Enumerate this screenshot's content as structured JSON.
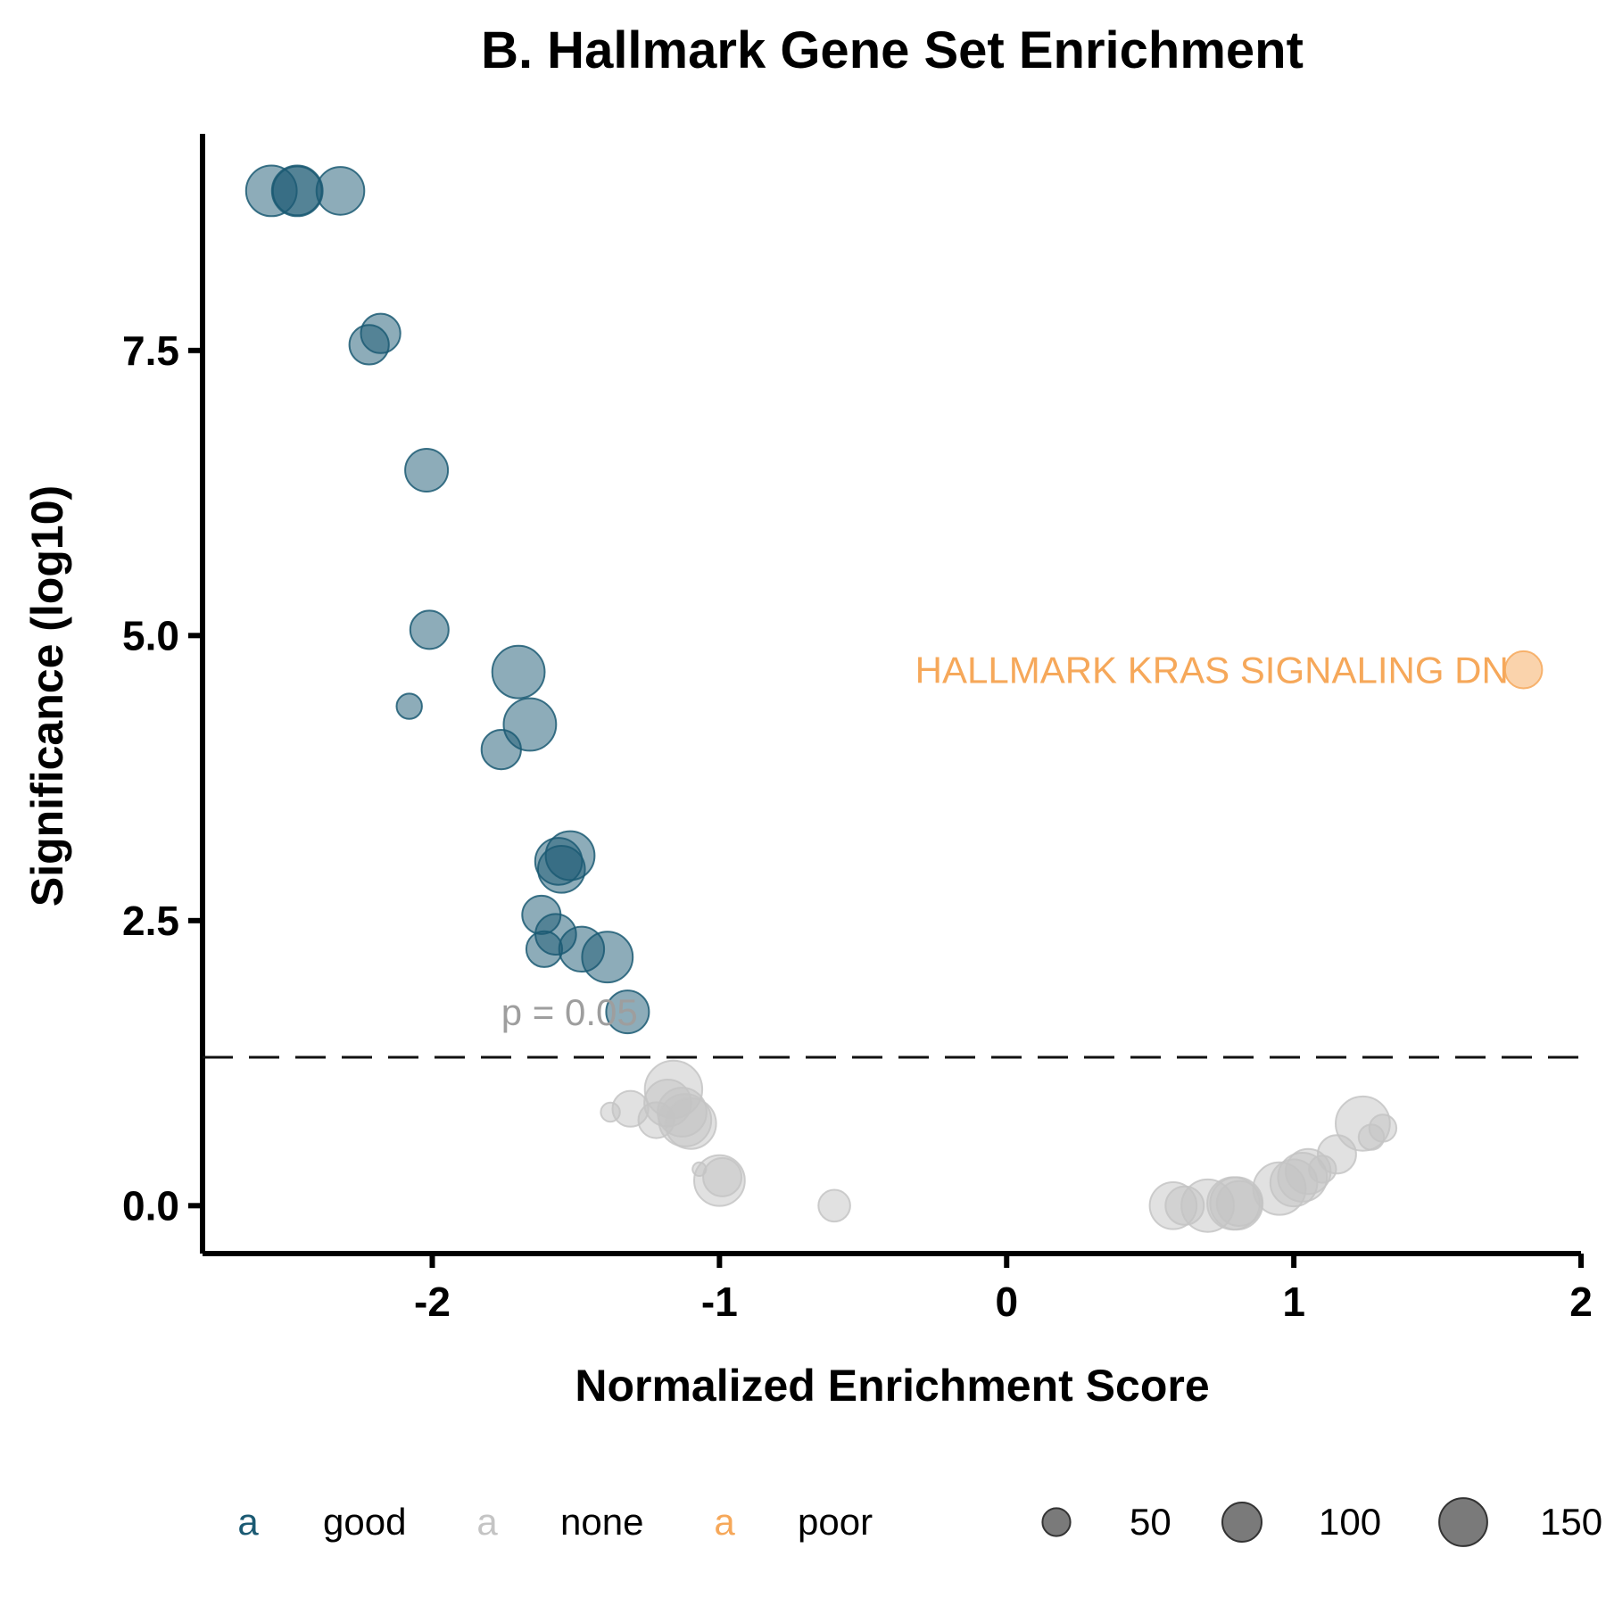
{
  "chart_data": {
    "type": "scatter",
    "title": "B. Hallmark Gene Set Enrichment",
    "xlabel": "Normalized Enrichment Score",
    "ylabel": "Significance (log10)",
    "xlim": [
      -2.8,
      2.0
    ],
    "ylim": [
      -0.42,
      9.4
    ],
    "xticks": [
      -2,
      -1,
      0,
      1,
      2
    ],
    "xtick_labels": [
      "-2",
      "-1",
      "0",
      "1",
      "2"
    ],
    "yticks": [
      0,
      2.5,
      5.0,
      7.5
    ],
    "ytick_labels": [
      "0.0",
      "2.5",
      "5.0",
      "7.5"
    ],
    "grid": false,
    "threshold": {
      "y": 1.301,
      "label": "p = 0.05"
    },
    "colors": {
      "good": "#1b5a73",
      "none": "#c4c4c4",
      "poor": "#f6a85a"
    },
    "point_opacity": 0.5,
    "size_legend": {
      "values": [
        50,
        100,
        150
      ],
      "labels": [
        "50",
        "100",
        "150"
      ]
    },
    "color_legend": {
      "key_glyph": "a",
      "entries": [
        {
          "group": "good",
          "label": "good"
        },
        {
          "group": "none",
          "label": "none"
        },
        {
          "group": "poor",
          "label": "poor"
        }
      ]
    },
    "legend_position": "bottom",
    "annotation": {
      "text": "HALLMARK KRAS SIGNALING DN",
      "group": "poor"
    },
    "points": [
      {
        "x": -2.56,
        "y": 8.9,
        "size": 140,
        "group": "good"
      },
      {
        "x": -2.47,
        "y": 8.9,
        "size": 140,
        "group": "good"
      },
      {
        "x": -2.47,
        "y": 8.9,
        "size": 130,
        "group": "good"
      },
      {
        "x": -2.32,
        "y": 8.9,
        "size": 125,
        "group": "good"
      },
      {
        "x": -2.18,
        "y": 7.65,
        "size": 85,
        "group": "good"
      },
      {
        "x": -2.22,
        "y": 7.55,
        "size": 85,
        "group": "good"
      },
      {
        "x": -2.02,
        "y": 6.45,
        "size": 100,
        "group": "good"
      },
      {
        "x": -2.01,
        "y": 5.05,
        "size": 80,
        "group": "good"
      },
      {
        "x": -2.08,
        "y": 4.38,
        "size": 35,
        "group": "good"
      },
      {
        "x": -1.7,
        "y": 4.68,
        "size": 150,
        "group": "good"
      },
      {
        "x": -1.66,
        "y": 4.22,
        "size": 150,
        "group": "good"
      },
      {
        "x": -1.76,
        "y": 4.0,
        "size": 85,
        "group": "good"
      },
      {
        "x": -1.56,
        "y": 3.02,
        "size": 120,
        "group": "good"
      },
      {
        "x": -1.55,
        "y": 2.95,
        "size": 120,
        "group": "good"
      },
      {
        "x": -1.52,
        "y": 3.07,
        "size": 130,
        "group": "good"
      },
      {
        "x": -1.62,
        "y": 2.55,
        "size": 80,
        "group": "good"
      },
      {
        "x": -1.57,
        "y": 2.38,
        "size": 90,
        "group": "good"
      },
      {
        "x": -1.61,
        "y": 2.25,
        "size": 70,
        "group": "good"
      },
      {
        "x": -1.48,
        "y": 2.25,
        "size": 110,
        "group": "good"
      },
      {
        "x": -1.39,
        "y": 2.18,
        "size": 140,
        "group": "good"
      },
      {
        "x": -1.32,
        "y": 1.7,
        "size": 100,
        "group": "good"
      },
      {
        "x": 1.8,
        "y": 4.7,
        "size": 75,
        "group": "poor"
      },
      {
        "x": -1.38,
        "y": 0.82,
        "size": 20,
        "group": "none"
      },
      {
        "x": -1.31,
        "y": 0.85,
        "size": 70,
        "group": "none"
      },
      {
        "x": -1.22,
        "y": 0.75,
        "size": 70,
        "group": "none"
      },
      {
        "x": -1.18,
        "y": 0.9,
        "size": 120,
        "group": "none"
      },
      {
        "x": -1.16,
        "y": 1.02,
        "size": 180,
        "group": "none"
      },
      {
        "x": -1.13,
        "y": 0.82,
        "size": 130,
        "group": "none"
      },
      {
        "x": -1.12,
        "y": 0.75,
        "size": 150,
        "group": "none"
      },
      {
        "x": -1.1,
        "y": 0.72,
        "size": 140,
        "group": "none"
      },
      {
        "x": -1.07,
        "y": 0.32,
        "size": 10,
        "group": "none"
      },
      {
        "x": -1.0,
        "y": 0.22,
        "size": 140,
        "group": "none"
      },
      {
        "x": -0.99,
        "y": 0.25,
        "size": 80,
        "group": "none"
      },
      {
        "x": -0.6,
        "y": 0.0,
        "size": 55,
        "group": "none"
      },
      {
        "x": 0.58,
        "y": 0.0,
        "size": 120,
        "group": "none"
      },
      {
        "x": 0.62,
        "y": 0.0,
        "size": 80,
        "group": "none"
      },
      {
        "x": 0.7,
        "y": 0.0,
        "size": 150,
        "group": "none"
      },
      {
        "x": 0.79,
        "y": 0.02,
        "size": 150,
        "group": "none"
      },
      {
        "x": 0.8,
        "y": 0.02,
        "size": 150,
        "group": "none"
      },
      {
        "x": 0.81,
        "y": 0.02,
        "size": 110,
        "group": "none"
      },
      {
        "x": 0.95,
        "y": 0.15,
        "size": 150,
        "group": "none"
      },
      {
        "x": 1.0,
        "y": 0.2,
        "size": 120,
        "group": "none"
      },
      {
        "x": 1.03,
        "y": 0.25,
        "size": 130,
        "group": "none"
      },
      {
        "x": 1.05,
        "y": 0.3,
        "size": 110,
        "group": "none"
      },
      {
        "x": 1.1,
        "y": 0.32,
        "size": 40,
        "group": "none"
      },
      {
        "x": 1.15,
        "y": 0.45,
        "size": 80,
        "group": "none"
      },
      {
        "x": 1.24,
        "y": 0.72,
        "size": 160,
        "group": "none"
      },
      {
        "x": 1.27,
        "y": 0.6,
        "size": 35,
        "group": "none"
      },
      {
        "x": 1.31,
        "y": 0.68,
        "size": 40,
        "group": "none"
      }
    ]
  }
}
